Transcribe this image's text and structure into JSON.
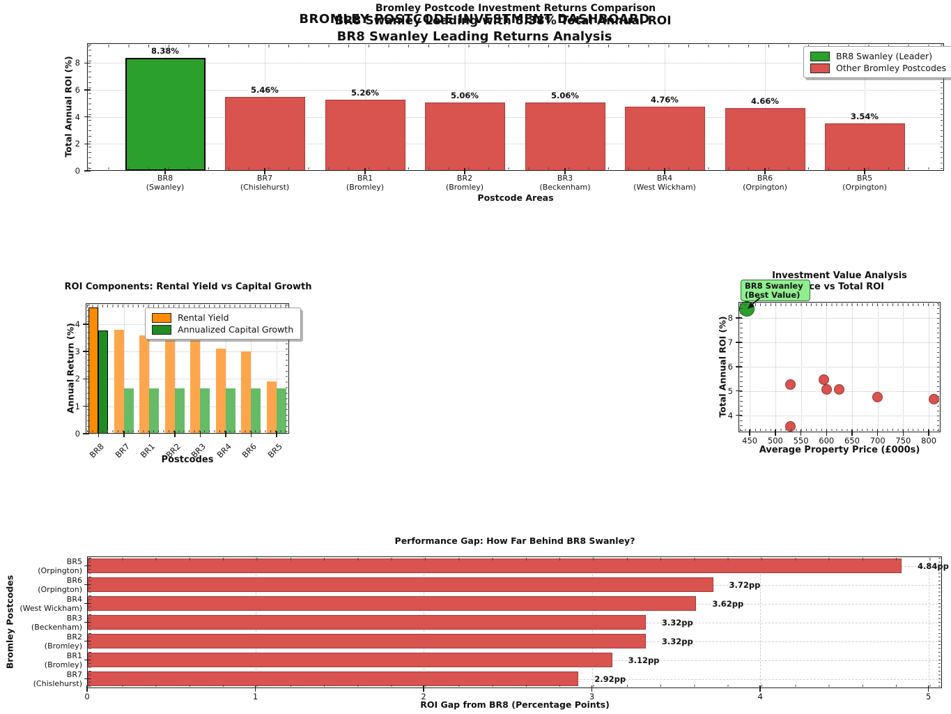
{
  "dashboard": {
    "suptitle_line1": "BROMLEY POSTCODE INVESTMENT DASHBOARD",
    "suptitle_line2": "BR8 Swanley Leading Returns Analysis"
  },
  "colors": {
    "leader_green": "#2ca02c",
    "leader_green_edge": "#000000",
    "other_red": "#d9534f",
    "other_red_edge": "#a33d3b",
    "scatter_red_edge": "#8b3a38",
    "scatter_green_edge": "#145214",
    "rental_orange": "#ff8c00",
    "rental_orange_light": "#ffa64d",
    "growth_green": "#228b22",
    "growth_green_light": "#66bb66",
    "annotation_bg": "#90ee90"
  },
  "chart_data": [
    {
      "id": "roi-comparison",
      "type": "bar",
      "title_line1": "Bromley Postcode Investment Returns Comparison",
      "title_line2": "BR8 Swanley Leading with 8.38% Total Annual ROI",
      "xlabel": "Postcode Areas",
      "ylabel": "Total Annual ROI (%)",
      "yticks": [
        0,
        2,
        4,
        6,
        8
      ],
      "ylim": [
        0,
        9.47
      ],
      "grid": true,
      "legend_position": "upper right",
      "categories": [
        {
          "code": "BR8",
          "area": "(Swanley)"
        },
        {
          "code": "BR7",
          "area": "(Chislehurst)"
        },
        {
          "code": "BR1",
          "area": "(Bromley)"
        },
        {
          "code": "BR2",
          "area": "(Bromley)"
        },
        {
          "code": "BR3",
          "area": "(Beckenham)"
        },
        {
          "code": "BR4",
          "area": "(West Wickham)"
        },
        {
          "code": "BR6",
          "area": "(Orpington)"
        },
        {
          "code": "BR5",
          "area": "(Orpington)"
        }
      ],
      "values": [
        8.38,
        5.46,
        5.26,
        5.06,
        5.06,
        4.76,
        4.66,
        3.54
      ],
      "value_labels": [
        "8.38%",
        "5.46%",
        "5.26%",
        "5.06%",
        "5.06%",
        "4.76%",
        "4.66%",
        "3.54%"
      ],
      "highlight_index": 0,
      "legend": [
        {
          "label": "BR8 Swanley (Leader)",
          "color": "#2ca02c"
        },
        {
          "label": "Other Bromley Postcodes",
          "color": "#d9534f"
        }
      ]
    },
    {
      "id": "roi-components",
      "type": "grouped_bar",
      "title": "ROI Components: Rental Yield vs Capital Growth",
      "xlabel": "Postcodes",
      "ylabel": "Annual Return (%)",
      "yticks": [
        0,
        1,
        2,
        3,
        4
      ],
      "ylim": [
        0,
        4.76
      ],
      "grid": true,
      "categories": [
        "BR8",
        "BR7",
        "BR1",
        "BR2",
        "BR3",
        "BR4",
        "BR6",
        "BR5"
      ],
      "series": [
        {
          "name": "Rental Yield",
          "color": "#ff8c00",
          "values": [
            4.6,
            3.8,
            3.6,
            3.4,
            3.4,
            3.1,
            3.0,
            1.9
          ]
        },
        {
          "name": "Annualized Capital Growth",
          "color": "#228b22",
          "values": [
            3.78,
            1.66,
            1.66,
            1.66,
            1.66,
            1.66,
            1.66,
            1.66
          ]
        }
      ],
      "highlight_index": 0
    },
    {
      "id": "value-analysis",
      "type": "scatter",
      "title_line1": "Investment Value Analysis",
      "title_line2": "Price vs Total ROI",
      "xlabel": "Average Property Price (£000s)",
      "ylabel": "Total Annual ROI (%)",
      "xticks": [
        450,
        500,
        550,
        600,
        650,
        700,
        750,
        800
      ],
      "yticks": [
        4,
        5,
        6,
        7,
        8
      ],
      "xlim": [
        428,
        823
      ],
      "ylim": [
        3.3,
        8.66
      ],
      "grid": true,
      "points": [
        {
          "x": 445,
          "y": 8.38,
          "highlight": true
        },
        {
          "x": 595,
          "y": 5.46
        },
        {
          "x": 530,
          "y": 5.26
        },
        {
          "x": 600,
          "y": 5.06
        },
        {
          "x": 625,
          "y": 5.06
        },
        {
          "x": 700,
          "y": 4.76
        },
        {
          "x": 810,
          "y": 4.66
        },
        {
          "x": 530,
          "y": 3.54
        }
      ],
      "annotation": {
        "line1": "BR8 Swanley",
        "line2": "(Best Value)"
      }
    },
    {
      "id": "performance-gap",
      "type": "hbar",
      "title": "Performance Gap: How Far Behind BR8 Swanley?",
      "xlabel": "ROI Gap from BR8 (Percentage Points)",
      "ylabel": "Bromley Postcodes",
      "xticks": [
        0,
        1,
        2,
        3,
        4,
        5
      ],
      "xlim": [
        0,
        5.08
      ],
      "grid": true,
      "categories": [
        {
          "code": "BR5",
          "area": "(Orpington)"
        },
        {
          "code": "BR6",
          "area": "(Orpington)"
        },
        {
          "code": "BR4",
          "area": "(West Wickham)"
        },
        {
          "code": "BR3",
          "area": "(Beckenham)"
        },
        {
          "code": "BR2",
          "area": "(Bromley)"
        },
        {
          "code": "BR1",
          "area": "(Bromley)"
        },
        {
          "code": "BR7",
          "area": "(Chislehurst)"
        }
      ],
      "values": [
        4.84,
        3.72,
        3.62,
        3.32,
        3.32,
        3.12,
        2.92
      ],
      "value_labels": [
        "4.84pp",
        "3.72pp",
        "3.62pp",
        "3.32pp",
        "3.32pp",
        "3.12pp",
        "2.92pp"
      ]
    }
  ]
}
